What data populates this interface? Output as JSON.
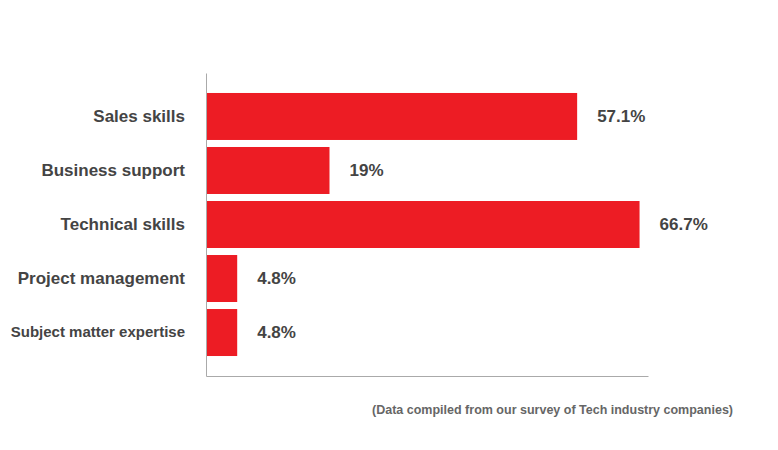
{
  "chart_data": {
    "type": "bar",
    "orientation": "horizontal",
    "categories": [
      "Sales skills",
      "Business support",
      "Technical skills",
      "Project management",
      "Subject matter expertise"
    ],
    "values": [
      57.1,
      19,
      66.7,
      4.8,
      4.8
    ],
    "value_labels": [
      "57.1%",
      "19%",
      "66.7%",
      "4.8%",
      "4.8%"
    ],
    "data_labels": true,
    "color": "#ed1c24",
    "xlim": [
      0,
      68
    ],
    "tick_labels": "y",
    "annotations": [
      "(Data compiled from our survey of Tech industry companies)"
    ]
  }
}
